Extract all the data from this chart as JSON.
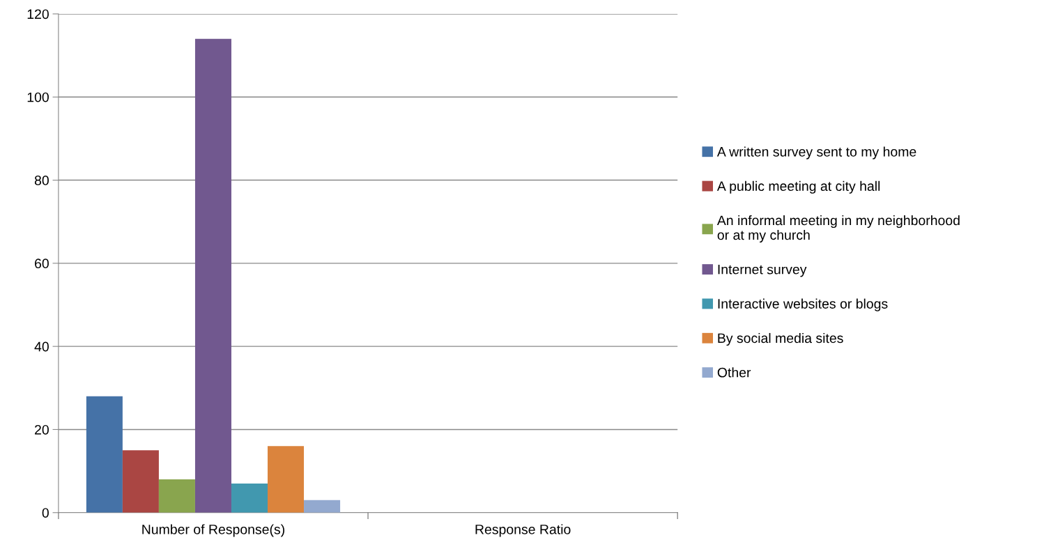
{
  "chart_data": {
    "type": "bar",
    "categories": [
      "Number of Response(s)",
      "Response Ratio"
    ],
    "series": [
      {
        "name": "A written survey sent to my home",
        "color": "#4572a7",
        "values": [
          28,
          0
        ]
      },
      {
        "name": "A public meeting at city hall",
        "color": "#aa4643",
        "values": [
          15,
          0
        ]
      },
      {
        "name": "An informal meeting in my neighborhood\nor at my church",
        "color": "#89a54e",
        "values": [
          8,
          0
        ]
      },
      {
        "name": "Internet survey",
        "color": "#71588f",
        "values": [
          114,
          0
        ]
      },
      {
        "name": "Interactive websites or blogs",
        "color": "#4198af",
        "values": [
          7,
          0
        ]
      },
      {
        "name": "By social media sites",
        "color": "#db843d",
        "values": [
          16,
          0
        ]
      },
      {
        "name": "Other",
        "color": "#93a9cf",
        "values": [
          3,
          0
        ]
      }
    ],
    "ylim": [
      0,
      120
    ],
    "yticks": [
      0,
      20,
      40,
      60,
      80,
      100,
      120
    ],
    "grid": "y",
    "legend": "right"
  }
}
